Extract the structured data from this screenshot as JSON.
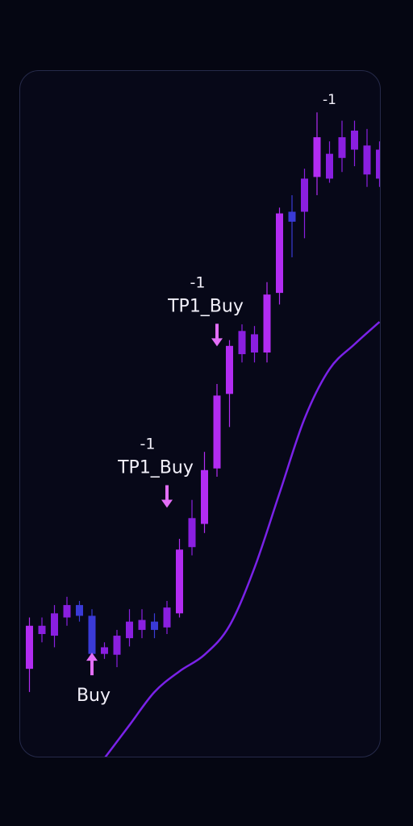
{
  "chart_data": {
    "type": "candlestick",
    "ylim": [
      0,
      830
    ],
    "grid": false,
    "legend": "none",
    "colors": {
      "background": "#050612",
      "panel": "#070818",
      "panel_border": "#262a4a",
      "bull": "#8a1fe0",
      "bear": "#3a3ad6",
      "bull_bright": "#b22cf2",
      "ma_line": "#7a22e8",
      "arrow": "#e36ef7",
      "text": "#f2f0fa"
    },
    "candles": [
      {
        "x": 1,
        "open": 108,
        "close": 160,
        "high": 170,
        "low": 80
      },
      {
        "x": 2,
        "open": 150,
        "close": 160,
        "high": 170,
        "low": 140
      },
      {
        "x": 3,
        "open": 148,
        "close": 175,
        "high": 185,
        "low": 134
      },
      {
        "x": 4,
        "open": 170,
        "close": 185,
        "high": 195,
        "low": 160
      },
      {
        "x": 5,
        "open": 185,
        "close": 172,
        "high": 190,
        "low": 165
      },
      {
        "x": 6,
        "open": 172,
        "close": 126,
        "high": 180,
        "low": 115
      },
      {
        "x": 7,
        "open": 126,
        "close": 134,
        "high": 140,
        "low": 120
      },
      {
        "x": 8,
        "open": 125,
        "close": 148,
        "high": 155,
        "low": 110
      },
      {
        "x": 9,
        "open": 145,
        "close": 165,
        "high": 180,
        "low": 135
      },
      {
        "x": 10,
        "open": 155,
        "close": 167,
        "high": 180,
        "low": 145
      },
      {
        "x": 11,
        "open": 165,
        "close": 155,
        "high": 175,
        "low": 145
      },
      {
        "x": 12,
        "open": 158,
        "close": 182,
        "high": 190,
        "low": 150
      },
      {
        "x": 13,
        "open": 175,
        "close": 252,
        "high": 265,
        "low": 170
      },
      {
        "x": 14,
        "open": 255,
        "close": 290,
        "high": 312,
        "low": 245
      },
      {
        "x": 15,
        "open": 283,
        "close": 348,
        "high": 370,
        "low": 272
      },
      {
        "x": 16,
        "open": 350,
        "close": 438,
        "high": 452,
        "low": 340
      },
      {
        "x": 17,
        "open": 440,
        "close": 498,
        "high": 505,
        "low": 400
      },
      {
        "x": 18,
        "open": 488,
        "close": 516,
        "high": 524,
        "low": 478
      },
      {
        "x": 19,
        "open": 490,
        "close": 512,
        "high": 522,
        "low": 478
      },
      {
        "x": 20,
        "open": 490,
        "close": 560,
        "high": 575,
        "low": 478
      },
      {
        "x": 21,
        "open": 562,
        "close": 658,
        "high": 665,
        "low": 548
      },
      {
        "x": 22,
        "open": 660,
        "close": 648,
        "high": 680,
        "low": 605
      },
      {
        "x": 23,
        "open": 660,
        "close": 700,
        "high": 712,
        "low": 628
      },
      {
        "x": 24,
        "open": 702,
        "close": 750,
        "high": 780,
        "low": 680
      },
      {
        "x": 25,
        "open": 700,
        "close": 730,
        "high": 745,
        "low": 695
      },
      {
        "x": 26,
        "open": 725,
        "close": 750,
        "high": 770,
        "low": 708
      },
      {
        "x": 27,
        "open": 735,
        "close": 758,
        "high": 770,
        "low": 715
      },
      {
        "x": 28,
        "open": 705,
        "close": 740,
        "high": 760,
        "low": 690
      },
      {
        "x": 29,
        "open": 700,
        "close": 735,
        "high": 745,
        "low": 690
      }
    ],
    "moving_average": [
      {
        "x": 7,
        "y": 0
      },
      {
        "x": 9,
        "y": 40
      },
      {
        "x": 11,
        "y": 80
      },
      {
        "x": 13,
        "y": 105
      },
      {
        "x": 15,
        "y": 125
      },
      {
        "x": 17,
        "y": 160
      },
      {
        "x": 19,
        "y": 230
      },
      {
        "x": 21,
        "y": 320
      },
      {
        "x": 23,
        "y": 410
      },
      {
        "x": 25,
        "y": 470
      },
      {
        "x": 27,
        "y": 500
      },
      {
        "x": 29,
        "y": 527
      }
    ],
    "annotations": [
      {
        "id": "buy",
        "x": 6,
        "label": "Buy",
        "value_label": "",
        "arrow": "up",
        "anchor": 110
      },
      {
        "id": "tp1-first",
        "x": 12,
        "label": "TP1_Buy",
        "value_label": "-1",
        "arrow": "down",
        "anchor": 320
      },
      {
        "id": "tp1-second",
        "x": 16,
        "label": "TP1_Buy",
        "value_label": "-1",
        "arrow": "down",
        "anchor": 515
      },
      {
        "id": "top-marker",
        "x": 25,
        "label": "",
        "value_label": "-1",
        "arrow": "none",
        "anchor": 790
      }
    ]
  }
}
